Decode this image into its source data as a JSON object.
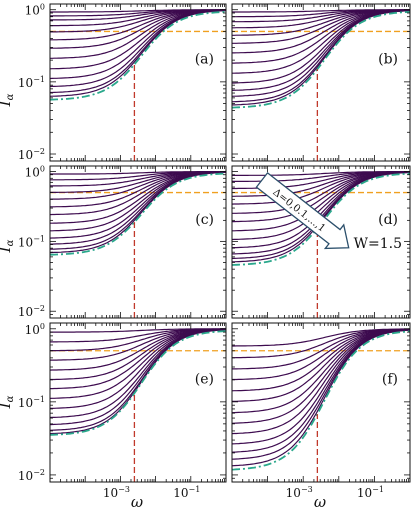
{
  "chart_data": {
    "type": "line",
    "xlabel": "ω",
    "ylabel": "I_α",
    "x_scale": "log",
    "y_scale": "log",
    "xlim": [
      1e-05,
      1
    ],
    "ylim": [
      0.008,
      1.2
    ],
    "x_ticks": [
      {
        "value": 0.001,
        "base": "10",
        "exp": "−3"
      },
      {
        "value": 0.1,
        "base": "10",
        "exp": "−1"
      }
    ],
    "y_ticks": [
      {
        "value": 1,
        "base": "10",
        "exp": "0"
      },
      {
        "value": 0.1,
        "base": "10",
        "exp": "−1"
      },
      {
        "value": 0.01,
        "base": "10",
        "exp": "−2"
      }
    ],
    "horizontal_reference": 0.5,
    "vertical_reference": 0.0025,
    "annotation_arrow": "Δ=0,0.1,...,1",
    "annotation_text": "W=1.5",
    "panels": [
      {
        "label": "(a)",
        "lows": [
          0.93,
          0.82,
          0.72,
          0.6,
          0.49,
          0.38,
          0.29,
          0.21,
          0.15,
          0.11,
          0.085,
          0.07,
          0.062
        ],
        "green_low": 0.058
      },
      {
        "label": "(b)",
        "lows": [
          0.93,
          0.8,
          0.68,
          0.56,
          0.44,
          0.34,
          0.25,
          0.18,
          0.13,
          0.095,
          0.075,
          0.062,
          0.052,
          0.047
        ],
        "green_low": 0.045
      },
      {
        "label": "(c)",
        "lows": [
          0.92,
          0.76,
          0.62,
          0.5,
          0.4,
          0.31,
          0.24,
          0.18,
          0.14,
          0.11,
          0.09,
          0.076,
          0.068
        ],
        "green_low": 0.066
      },
      {
        "label": "(d)",
        "lows": [
          0.88,
          0.72,
          0.57,
          0.44,
          0.34,
          0.25,
          0.19,
          0.14,
          0.105,
          0.08,
          0.065,
          0.056,
          0.05
        ],
        "green_low": 0.047
      },
      {
        "label": "(e)",
        "lows": [
          0.9,
          0.66,
          0.5,
          0.37,
          0.27,
          0.2,
          0.15,
          0.11,
          0.08,
          0.06,
          0.048,
          0.04,
          0.036
        ],
        "green_low": 0.036
      },
      {
        "label": "(f)",
        "lows": [
          0.58,
          0.4,
          0.28,
          0.2,
          0.14,
          0.1,
          0.07,
          0.05,
          0.036,
          0.026,
          0.02,
          0.016,
          0.013
        ],
        "green_low": 0.012
      }
    ]
  }
}
